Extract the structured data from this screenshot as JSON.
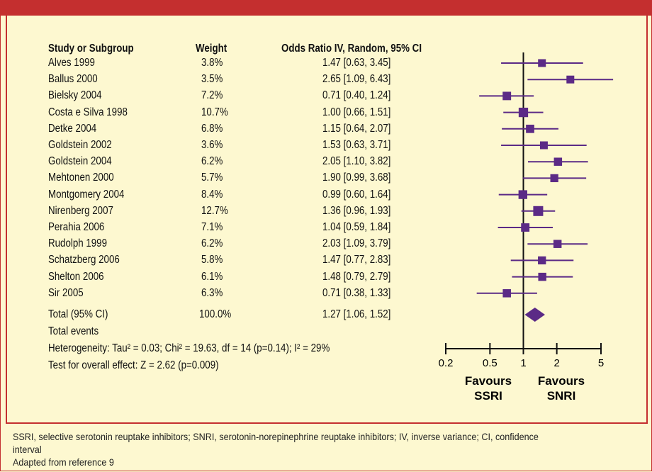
{
  "header": {
    "study": "Study or Subgroup",
    "weight": "Weight",
    "ci": "Odds Ratio IV, Random, 95% CI"
  },
  "total": {
    "label": "Total (95% CI)",
    "weight": "100.0%",
    "ci": "1.27 [1.06, 1.52]",
    "events": "Total events",
    "heterogeneity": "Heterogeneity: Tau² = 0.03; Chi² = 19.63, df = 14 (p=0.14); I² = 29%",
    "effect": "Test for overall effect: Z = 2.62 (p=0.009)"
  },
  "favours": {
    "left": [
      "Favours",
      "SSRI"
    ],
    "right": [
      "Favours",
      "SNRI"
    ]
  },
  "footnote": {
    "line1": "SSRI, selective serotonin reuptake inhibitors; SNRI, serotonin-norepinephrine reuptake inhibitors; IV, inverse variance; CI, confidence",
    "line2": "interval",
    "line3": "Adapted from reference 9"
  },
  "chart_data": {
    "type": "forest",
    "x_scale": "log",
    "xlim": [
      0.2,
      5
    ],
    "x_ticks": [
      0.2,
      0.5,
      1,
      2,
      5
    ],
    "x_tick_labels": [
      "0.2",
      "0.5",
      "1",
      "2",
      "5"
    ],
    "reference_line": 1,
    "colors": {
      "marker": "#5b2a86",
      "frame": "#c42f2f",
      "background": "#fdf8d0"
    },
    "studies": [
      {
        "name": "Alves 1999",
        "weight": "3.8%",
        "ci_text": "1.47 [0.63, 3.45]",
        "or": 1.47,
        "lo": 0.63,
        "hi": 3.45
      },
      {
        "name": "Ballus 2000",
        "weight": "3.5%",
        "ci_text": "2.65 [1.09, 6.43]",
        "or": 2.65,
        "lo": 1.09,
        "hi": 6.43
      },
      {
        "name": "Bielsky 2004",
        "weight": "7.2%",
        "ci_text": "0.71 [0.40, 1.24]",
        "or": 0.71,
        "lo": 0.4,
        "hi": 1.24
      },
      {
        "name": "Costa e Silva 1998",
        "weight": "10.7%",
        "ci_text": "1.00 [0.66, 1.51]",
        "or": 1.0,
        "lo": 0.66,
        "hi": 1.51
      },
      {
        "name": "Detke 2004",
        "weight": "6.8%",
        "ci_text": "1.15 [0.64, 2.07]",
        "or": 1.15,
        "lo": 0.64,
        "hi": 2.07
      },
      {
        "name": "Goldstein 2002",
        "weight": "3.6%",
        "ci_text": "1.53 [0.63, 3.71]",
        "or": 1.53,
        "lo": 0.63,
        "hi": 3.71
      },
      {
        "name": "Goldstein 2004",
        "weight": "6.2%",
        "ci_text": "2.05 [1.10, 3.82]",
        "or": 2.05,
        "lo": 1.1,
        "hi": 3.82
      },
      {
        "name": "Mehtonen 2000",
        "weight": "5.7%",
        "ci_text": "1.90 [0.99, 3.68]",
        "or": 1.9,
        "lo": 0.99,
        "hi": 3.68
      },
      {
        "name": "Montgomery 2004",
        "weight": "8.4%",
        "ci_text": "0.99 [0.60, 1.64]",
        "or": 0.99,
        "lo": 0.6,
        "hi": 1.64
      },
      {
        "name": "Nirenberg 2007",
        "weight": "12.7%",
        "ci_text": "1.36 [0.96, 1.93]",
        "or": 1.36,
        "lo": 0.96,
        "hi": 1.93
      },
      {
        "name": "Perahia 2006",
        "weight": "7.1%",
        "ci_text": "1.04 [0.59, 1.84]",
        "or": 1.04,
        "lo": 0.59,
        "hi": 1.84
      },
      {
        "name": "Rudolph 1999",
        "weight": "6.2%",
        "ci_text": "2.03 [1.09, 3.79]",
        "or": 2.03,
        "lo": 1.09,
        "hi": 3.79
      },
      {
        "name": "Schatzberg 2006",
        "weight": "5.8%",
        "ci_text": "1.47 [0.77, 2.83]",
        "or": 1.47,
        "lo": 0.77,
        "hi": 2.83
      },
      {
        "name": "Shelton 2006",
        "weight": "6.1%",
        "ci_text": "1.48 [0.79, 2.79]",
        "or": 1.48,
        "lo": 0.79,
        "hi": 2.79
      },
      {
        "name": "Sir 2005",
        "weight": "6.3%",
        "ci_text": "0.71 [0.38, 1.33]",
        "or": 0.71,
        "lo": 0.38,
        "hi": 1.33
      }
    ],
    "pooled": {
      "or": 1.27,
      "lo": 1.06,
      "hi": 1.52
    }
  }
}
